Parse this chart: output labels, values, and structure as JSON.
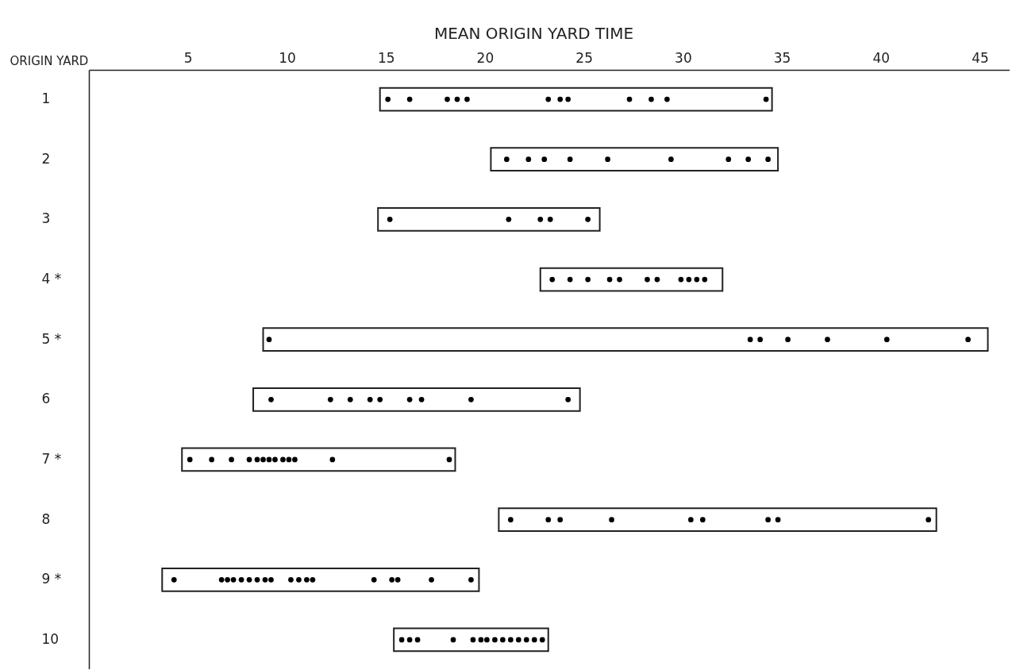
{
  "chart_data": {
    "type": "bar",
    "orientation": "horizontal",
    "xlabel": "MEAN ORIGIN YARD TIME",
    "ylabel": "ORIGIN YARD",
    "categories": [
      "1",
      "2",
      "3",
      "4 *",
      "5 *",
      "6",
      "7 *",
      "8",
      "9 *",
      "10"
    ],
    "xlim": [
      0,
      46.5
    ],
    "xticks": [
      5,
      10,
      15,
      20,
      25,
      30,
      35,
      40,
      45
    ],
    "grid": false,
    "series": [
      {
        "color": "#ffffff",
        "base": [
          14.7,
          20.3,
          14.6,
          22.8,
          8.8,
          8.3,
          4.7,
          20.7,
          3.7,
          15.4
        ],
        "values": [
          19.8,
          14.5,
          11.2,
          9.2,
          36.6,
          16.5,
          13.8,
          22.1,
          16.0,
          7.8
        ]
      },
      {
        "type": "scatter",
        "color": "#000000",
        "marker": "circle",
        "x": [
          "1",
          "1",
          "1",
          "1",
          "1",
          "1",
          "1",
          "1",
          "1",
          "1",
          "1",
          "1",
          "2",
          "2",
          "2",
          "2",
          "2",
          "2",
          "2",
          "2",
          "2",
          "3",
          "3",
          "3",
          "3",
          "3",
          "4 *",
          "4 *",
          "4 *",
          "4 *",
          "4 *",
          "4 *",
          "4 *",
          "4 *",
          "4 *",
          "4 *",
          "4 *",
          "5 *",
          "5 *",
          "5 *",
          "5 *",
          "5 *",
          "5 *",
          "5 *",
          "6",
          "6",
          "6",
          "6",
          "6",
          "6",
          "6",
          "6",
          "6",
          "7 *",
          "7 *",
          "7 *",
          "7 *",
          "7 *",
          "7 *",
          "7 *",
          "7 *",
          "7 *",
          "7 *",
          "7 *",
          "7 *",
          "7 *",
          "8",
          "8",
          "8",
          "8",
          "8",
          "8",
          "8",
          "8",
          "8",
          "9 *",
          "9 *",
          "9 *",
          "9 *",
          "9 *",
          "9 *",
          "9 *",
          "9 *",
          "9 *",
          "9 *",
          "9 *",
          "9 *",
          "9 *",
          "9 *",
          "9 *",
          "9 *",
          "9 *",
          "9 *",
          "10",
          "10",
          "10",
          "10",
          "10",
          "10",
          "10",
          "10",
          "10",
          "10",
          "10",
          "10",
          "10",
          "10"
        ],
        "values": [
          15.1,
          16.2,
          18.1,
          18.6,
          19.1,
          23.2,
          23.8,
          24.2,
          27.3,
          28.4,
          29.2,
          34.2,
          21.1,
          22.2,
          23.0,
          24.3,
          26.2,
          29.4,
          32.3,
          33.3,
          34.3,
          15.2,
          21.2,
          22.8,
          23.3,
          25.2,
          23.4,
          24.3,
          25.2,
          26.3,
          26.8,
          28.2,
          28.7,
          29.9,
          30.3,
          30.7,
          31.1,
          9.1,
          33.4,
          33.9,
          35.3,
          37.3,
          40.3,
          44.4,
          9.2,
          12.2,
          13.2,
          14.2,
          14.7,
          16.2,
          16.8,
          19.3,
          24.2,
          5.1,
          6.2,
          7.2,
          8.1,
          8.5,
          8.8,
          9.1,
          9.4,
          9.8,
          10.1,
          10.4,
          12.3,
          18.2,
          21.3,
          23.2,
          23.8,
          26.4,
          30.4,
          31.0,
          34.3,
          34.8,
          42.4,
          4.3,
          6.7,
          7.0,
          7.3,
          7.7,
          8.1,
          8.5,
          8.9,
          9.2,
          10.2,
          10.6,
          11.0,
          11.3,
          14.4,
          15.3,
          15.6,
          17.3,
          19.3,
          15.8,
          16.2,
          16.6,
          18.4,
          19.4,
          19.8,
          20.1,
          20.5,
          20.9,
          21.3,
          21.7,
          22.1,
          22.5,
          22.9
        ]
      }
    ]
  }
}
